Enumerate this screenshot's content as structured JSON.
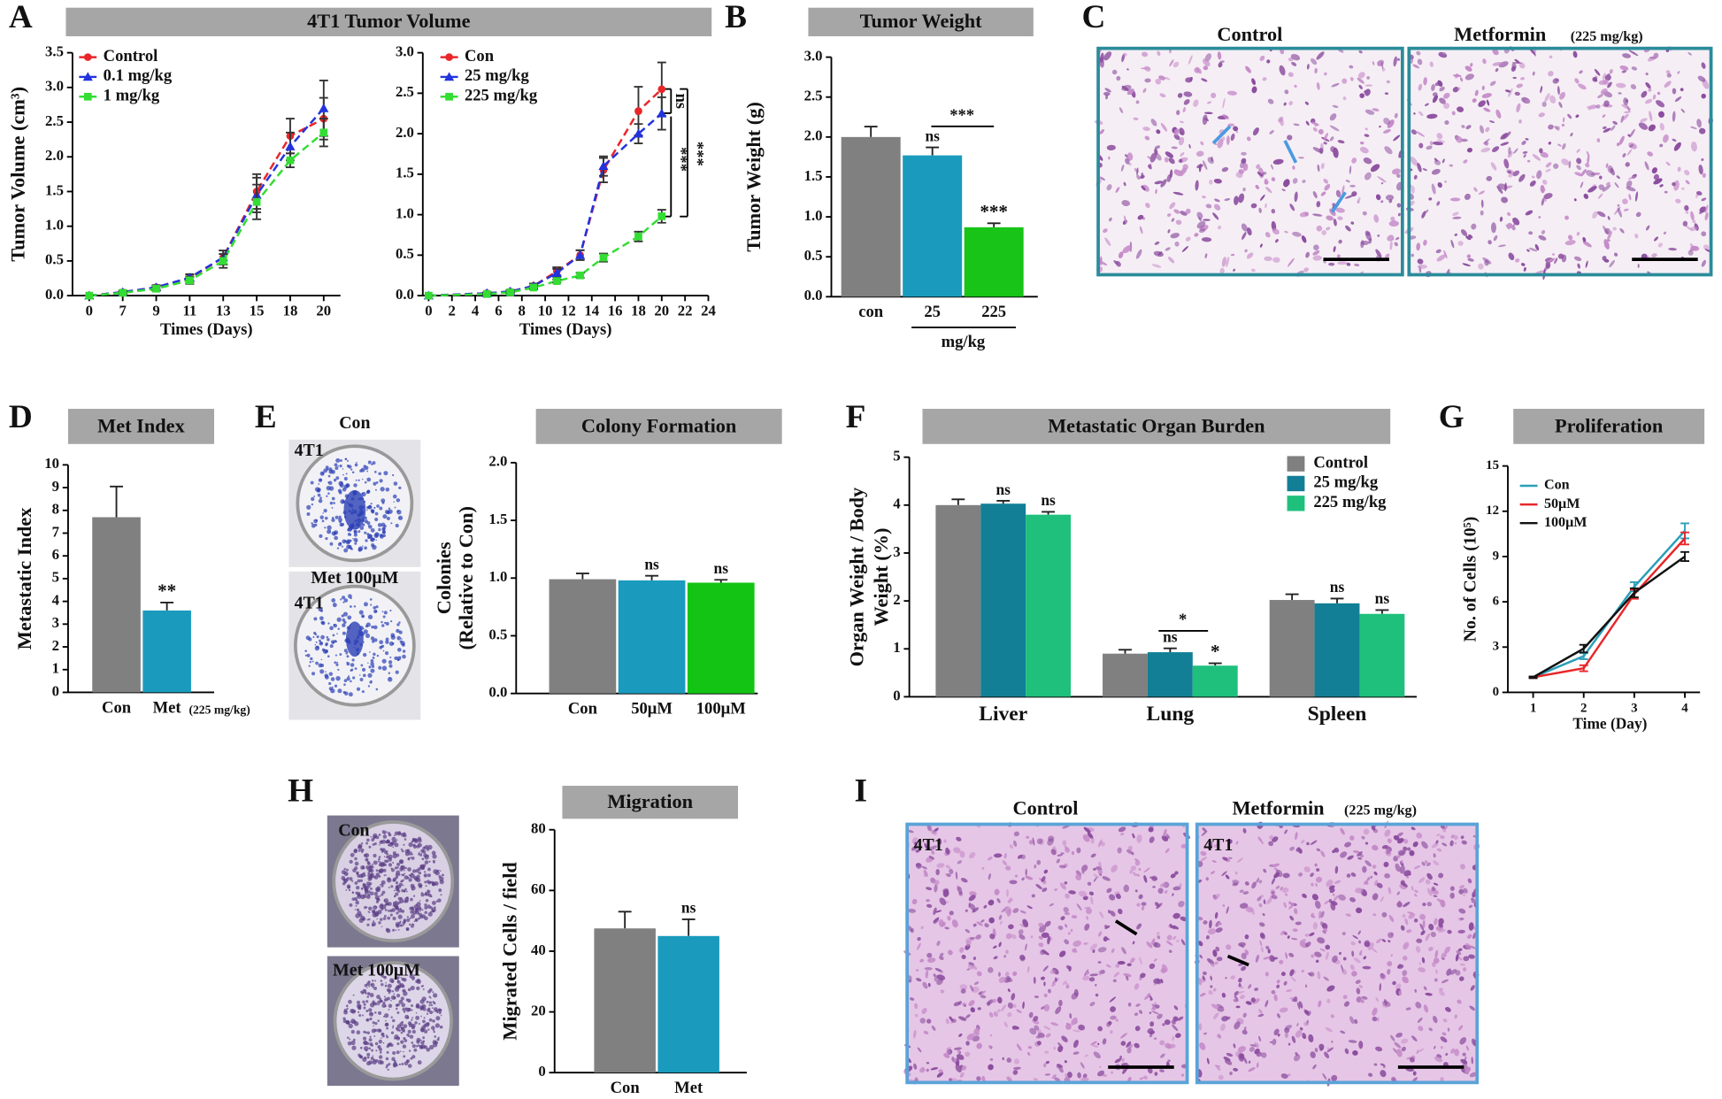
{
  "figure": {
    "panel_labels": [
      "A",
      "B",
      "C",
      "D",
      "E",
      "F",
      "G",
      "H",
      "I"
    ],
    "C": {
      "control": "Control",
      "metformin": "Metformin",
      "dose": "(225 mg/kg)"
    },
    "E": {
      "con": "Con",
      "met": "Met 100μM",
      "cell_line": "4T1"
    },
    "H": {
      "con": "Con",
      "met": "Met 100μM"
    },
    "I": {
      "control": "Control",
      "metformin": "Metformin",
      "dose": "(225 mg/kg)",
      "cell_line": "4T1"
    }
  },
  "chart_data": [
    {
      "type": "line",
      "title": "4T1 Tumor Volume",
      "xlabel": "Times (Days)",
      "ylabel": "Tumor Volume (cm³)",
      "categories": [
        "0",
        "7",
        "9",
        "11",
        "13",
        "15",
        "18",
        "20"
      ],
      "ylim": [
        0,
        3.5
      ],
      "yticks": [
        {
          "value": 0,
          "label": "0.0"
        },
        {
          "value": 0.5,
          "label": "0.5"
        },
        {
          "value": 1,
          "label": "1.0"
        },
        {
          "value": 1.5,
          "label": "1.5"
        },
        {
          "value": 2,
          "label": "2.0"
        },
        {
          "value": 2.5,
          "label": "2.5"
        },
        {
          "value": 3,
          "label": "3.0"
        },
        {
          "value": 3.5,
          "label": "3.5"
        }
      ],
      "legend": "upper left",
      "dashed": true,
      "series": [
        {
          "name": "Control",
          "color": "#e8262a",
          "marker": "circle",
          "values": [
            0,
            0.05,
            0.12,
            0.25,
            0.55,
            1.5,
            2.3,
            2.55
          ],
          "errors": [
            0,
            0.02,
            0.03,
            0.05,
            0.1,
            0.25,
            0.25,
            0.3
          ]
        },
        {
          "name": "0.1 mg/kg",
          "color": "#2233dd",
          "marker": "triangle",
          "values": [
            0,
            0.05,
            0.12,
            0.26,
            0.55,
            1.45,
            2.15,
            2.7
          ],
          "errors": [
            0,
            0.02,
            0.03,
            0.05,
            0.1,
            0.25,
            0.2,
            0.4
          ]
        },
        {
          "name": "1 mg/kg",
          "color": "#33dd33",
          "marker": "square",
          "values": [
            0,
            0.04,
            0.1,
            0.22,
            0.5,
            1.35,
            1.95,
            2.35
          ],
          "errors": [
            0,
            0.02,
            0.03,
            0.05,
            0.1,
            0.25,
            0.1,
            0.2
          ]
        }
      ]
    },
    {
      "type": "line",
      "xlabel": "Times (Days)",
      "x": [
        0,
        5,
        7,
        9,
        11,
        13,
        15,
        18,
        20
      ],
      "xlim": [
        -0.5,
        24
      ],
      "xticks": [
        0,
        2,
        4,
        6,
        8,
        10,
        12,
        14,
        16,
        18,
        20,
        22,
        24
      ],
      "ylim": [
        0,
        3
      ],
      "yticks": [
        {
          "value": 0,
          "label": "0.0"
        },
        {
          "value": 0.5,
          "label": "0.5"
        },
        {
          "value": 1,
          "label": "1.0"
        },
        {
          "value": 1.5,
          "label": "1.5"
        },
        {
          "value": 2,
          "label": "2.0"
        },
        {
          "value": 2.5,
          "label": "2.5"
        },
        {
          "value": 3,
          "label": "3.0"
        }
      ],
      "legend": "upper left",
      "dashed": true,
      "series": [
        {
          "name": "Con",
          "color": "#e8262a",
          "marker": "circle",
          "values": [
            0,
            0.03,
            0.05,
            0.12,
            0.3,
            0.5,
            1.55,
            2.28,
            2.55
          ],
          "errors": [
            0,
            0.01,
            0.02,
            0.03,
            0.05,
            0.06,
            0.15,
            0.3,
            0.33
          ]
        },
        {
          "name": "25 mg/kg",
          "color": "#2233dd",
          "marker": "triangle",
          "values": [
            0,
            0.03,
            0.05,
            0.12,
            0.28,
            0.5,
            1.6,
            2.0,
            2.25
          ],
          "errors": [
            0,
            0.01,
            0.02,
            0.03,
            0.05,
            0.06,
            0.12,
            0.12,
            0.2
          ]
        },
        {
          "name": "225 mg/kg",
          "color": "#33dd33",
          "marker": "square",
          "values": [
            0,
            0.02,
            0.04,
            0.1,
            0.18,
            0.25,
            0.47,
            0.73,
            0.98
          ],
          "errors": [
            0,
            0.01,
            0.01,
            0.02,
            0.02,
            0.03,
            0.05,
            0.06,
            0.08
          ]
        }
      ],
      "brackets": [
        {
          "text": "ns"
        },
        {
          "text": "***"
        },
        {
          "text": "***"
        }
      ]
    },
    {
      "type": "bar",
      "title": "Tumor Weight",
      "ylabel": "Tumor  Weight (g)",
      "xlabel": "mg/kg",
      "categories": [
        "con",
        "25",
        "225"
      ],
      "ylim": [
        0,
        3
      ],
      "yticks": [
        {
          "value": 0,
          "label": "0.0"
        },
        {
          "value": 0.5,
          "label": "0.5"
        },
        {
          "value": 1,
          "label": "1.0"
        },
        {
          "value": 1.5,
          "label": "1.5"
        },
        {
          "value": 2,
          "label": "2.0"
        },
        {
          "value": 2.5,
          "label": "2.5"
        },
        {
          "value": 3,
          "label": "3.0"
        }
      ],
      "series": [
        {
          "values": [
            2.0,
            1.77,
            0.87
          ],
          "errors": [
            0.13,
            0.1,
            0.05
          ],
          "colors": [
            "#808080",
            "#1a9bbd",
            "#17c417"
          ],
          "significance": [
            null,
            "ns",
            "***"
          ]
        }
      ],
      "brackets": [
        {
          "text": "***"
        }
      ]
    },
    {
      "type": "bar",
      "title": "Met Index",
      "ylabel": "Metastatic Index",
      "categories": [
        "Con",
        "Met"
      ],
      "category_note": "(225 mg/kg)",
      "ylim": [
        0,
        10
      ],
      "yticks": [
        0,
        1,
        2,
        3,
        4,
        5,
        6,
        7,
        8,
        9,
        10
      ],
      "series": [
        {
          "values": [
            7.7,
            3.6
          ],
          "errors": [
            1.35,
            0.35
          ],
          "colors": [
            "#808080",
            "#1a9bbd"
          ],
          "significance": [
            null,
            "**"
          ]
        }
      ]
    },
    {
      "type": "bar",
      "title": "Colony Formation",
      "ylabel": [
        "Colonies",
        "(Relative to Con)"
      ],
      "categories": [
        "Con",
        "50μM",
        "100μM"
      ],
      "ylim": [
        0,
        2
      ],
      "yticks": [
        {
          "value": 0,
          "label": "0.0"
        },
        {
          "value": 0.5,
          "label": "0.5"
        },
        {
          "value": 1,
          "label": "1.0"
        },
        {
          "value": 1.5,
          "label": "1.5"
        },
        {
          "value": 2,
          "label": "2.0"
        }
      ],
      "series": [
        {
          "values": [
            0.99,
            0.98,
            0.96
          ],
          "errors": [
            0.05,
            0.04,
            0.025
          ],
          "colors": [
            "#808080",
            "#1a9bbd",
            "#14c414"
          ],
          "significance": [
            null,
            "ns",
            "ns"
          ]
        }
      ]
    },
    {
      "type": "bar",
      "title": "Metastatic Organ Burden",
      "ylabel": [
        "Organ Weight / Body",
        "Weight (%)"
      ],
      "categories": [
        "Liver",
        "Lung",
        "Spleen"
      ],
      "legend": "upper right",
      "ylim": [
        0,
        5
      ],
      "yticks": [
        0,
        1,
        2,
        3,
        4,
        5
      ],
      "series": [
        {
          "name": "Control",
          "color": "#808080",
          "values": [
            4.0,
            0.9,
            2.02
          ],
          "errors": [
            0.12,
            0.08,
            0.12
          ]
        },
        {
          "name": "25 mg/kg",
          "color": "#127f96",
          "values": [
            4.03,
            0.93,
            1.95
          ],
          "errors": [
            0.06,
            0.08,
            0.1
          ],
          "significance": [
            "ns",
            "ns",
            "ns"
          ]
        },
        {
          "name": "225 mg/kg",
          "color": "#1ec07c",
          "values": [
            3.8,
            0.65,
            1.73
          ],
          "errors": [
            0.06,
            0.05,
            0.08
          ],
          "significance": [
            "ns",
            "*",
            "ns"
          ]
        }
      ],
      "brackets": [
        {
          "text": "*"
        }
      ]
    },
    {
      "type": "line",
      "title": "Proliferation",
      "ylabel": "No. of Cells (10⁵)",
      "xlabel": "Time (Day)",
      "x": [
        1,
        2,
        3,
        4
      ],
      "xlim": [
        0.5,
        4.3
      ],
      "xticks": [
        1,
        2,
        3,
        4
      ],
      "ylim": [
        0,
        15
      ],
      "yticks": [
        0,
        3,
        6,
        9,
        12,
        15
      ],
      "legend": "upper left",
      "series": [
        {
          "name": "Con",
          "color": "#2a9fb8",
          "values": [
            1,
            2.4,
            7,
            10.7
          ],
          "errors": [
            0.05,
            0.2,
            0.3,
            0.5
          ]
        },
        {
          "name": "50μM",
          "color": "#e8262a",
          "values": [
            1,
            1.6,
            6.5,
            10.2
          ],
          "errors": [
            0.05,
            0.2,
            0.3,
            0.4
          ]
        },
        {
          "name": "100μM",
          "color": "#111111",
          "values": [
            1,
            2.9,
            6.6,
            9.0
          ],
          "errors": [
            0.05,
            0.25,
            0.3,
            0.3
          ]
        }
      ]
    },
    {
      "type": "bar",
      "title": "Migration",
      "ylabel": "Migrated Cells / field",
      "categories": [
        "Con",
        "Met"
      ],
      "ylim": [
        0,
        80
      ],
      "yticks": [
        0,
        20,
        40,
        60,
        80
      ],
      "series": [
        {
          "values": [
            47.5,
            45
          ],
          "errors": [
            5.5,
            5.5
          ],
          "colors": [
            "#808080",
            "#1a9bbd"
          ],
          "significance": [
            null,
            "ns"
          ]
        }
      ]
    }
  ]
}
